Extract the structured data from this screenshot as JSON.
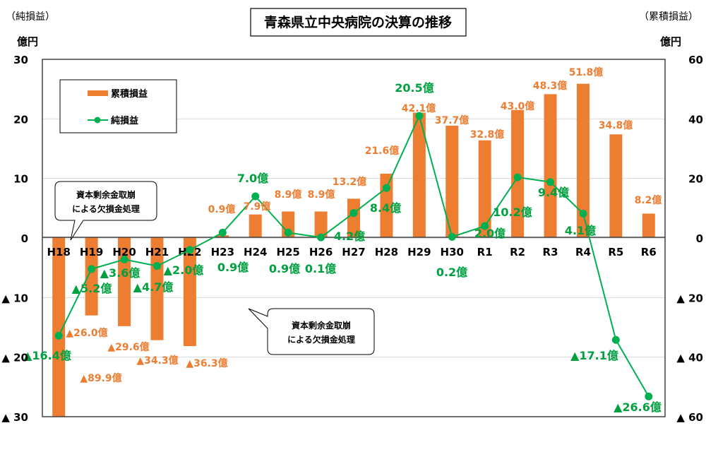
{
  "chart_data": {
    "type": "bar+line",
    "title": "青森県立中央病院の決算の推移",
    "left_axis": {
      "label": "（純損益）",
      "unit": "億円",
      "ylim": [
        -30,
        30
      ],
      "ticks": [
        "30",
        "20",
        "10",
        "0",
        "▲ 10",
        "▲ 20",
        "▲ 30"
      ]
    },
    "right_axis": {
      "label": "（累積損益）",
      "unit": "億円",
      "ylim": [
        -60,
        60
      ],
      "ticks": [
        "60",
        "40",
        "20",
        "0",
        "▲ 20",
        "▲ 40",
        "▲ 60"
      ]
    },
    "grid": true,
    "legend_placement": "top-left",
    "categories": [
      "H18",
      "H19",
      "H20",
      "H21",
      "H22",
      "H23",
      "H24",
      "H25",
      "H26",
      "H27",
      "H28",
      "H29",
      "H30",
      "R1",
      "R2",
      "R3",
      "R4",
      "R5",
      "R6"
    ],
    "series": [
      {
        "name": "累積損益",
        "type": "bar",
        "axis": "right",
        "color": "#ED7D31",
        "values": [
          -89.9,
          -26.0,
          -29.6,
          -34.3,
          -36.3,
          0.9,
          7.9,
          8.9,
          8.9,
          13.2,
          21.6,
          42.1,
          37.7,
          32.8,
          43.0,
          48.3,
          51.8,
          34.8,
          8.2
        ],
        "labels": [
          "▲89.9億",
          "▲26.0億",
          "▲29.6億",
          "▲34.3億",
          "▲36.3億",
          "0.9億",
          "7.9億",
          "8.9億",
          "8.9億",
          "13.2億",
          "21.6億",
          "42.1億",
          "37.7億",
          "32.8億",
          "43.0億",
          "48.3億",
          "51.8億",
          "34.8億",
          "8.2億"
        ]
      },
      {
        "name": "純損益",
        "type": "line",
        "axis": "left",
        "color": "#00B050",
        "values": [
          -16.4,
          -5.2,
          -3.6,
          -4.7,
          -2.0,
          0.9,
          7.0,
          0.9,
          0.1,
          4.2,
          8.4,
          20.5,
          0.2,
          2.0,
          10.2,
          9.4,
          4.1,
          -17.1,
          -26.6
        ],
        "labels": [
          "▲16.4億",
          "▲5.2億",
          "▲3.6億",
          "▲4.7億",
          "▲2.0億",
          "0.9億",
          "7.0億",
          "0.9億",
          "0.1億",
          "4.2億",
          "8.4億",
          "20.5億",
          "0.2億",
          "2.0億",
          "10.2億",
          "9.4億",
          "4.1億",
          "▲17.1億",
          "▲26.6億"
        ]
      }
    ],
    "annotations": [
      {
        "lines": [
          "資本剰余金取崩",
          "による欠損金処理"
        ]
      },
      {
        "lines": [
          "資本剰余金取崩",
          "による欠損金処理"
        ]
      }
    ]
  }
}
